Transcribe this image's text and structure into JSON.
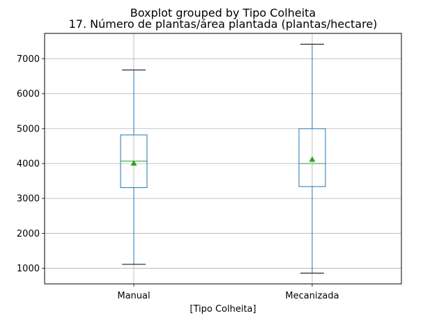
{
  "chart_data": {
    "type": "boxplot",
    "suptitle": "Boxplot grouped by Tipo Colheita",
    "title": "17. Número de plantas/área plantada (plantas/hectare)",
    "xlabel": "[Tipo Colheita]",
    "ylabel": "",
    "categories": [
      "Manual",
      "Mecanizada"
    ],
    "ylim": [
      550,
      7730
    ],
    "yticks": [
      1000,
      2000,
      3000,
      4000,
      5000,
      6000,
      7000
    ],
    "grid": true,
    "boxes": [
      {
        "whisker_low": 1110,
        "q1": 3310,
        "median": 4070,
        "q3": 4820,
        "whisker_high": 6680,
        "mean": 4010
      },
      {
        "whisker_low": 860,
        "q1": 3340,
        "median": 4000,
        "q3": 5000,
        "whisker_high": 7420,
        "mean": 4120
      }
    ],
    "colors": {
      "box": "#1f77b4",
      "median": "#2ca02c",
      "mean": "#2ca02c",
      "cap": "#000000",
      "grid": "#b0b0b0"
    }
  }
}
